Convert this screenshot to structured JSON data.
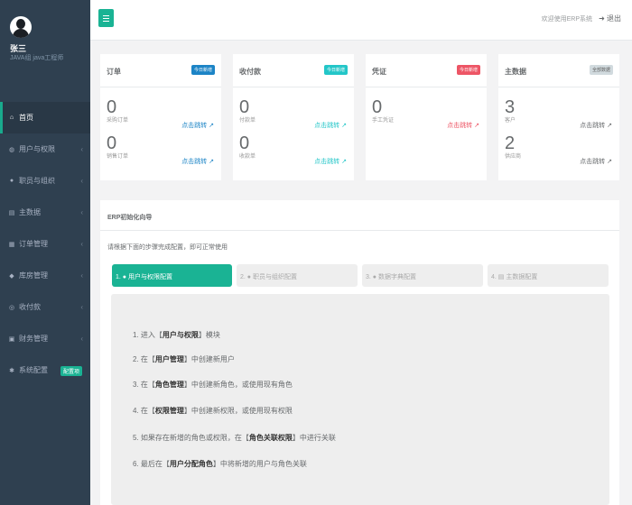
{
  "user": {
    "name": "张三",
    "role": "JAVA组 java工程师"
  },
  "nav": {
    "items": [
      {
        "label": "首页",
        "icon": "home-icon",
        "glyph": "⌂",
        "active": true
      },
      {
        "label": "用户与权限",
        "icon": "user-icon",
        "glyph": "◍",
        "arrow": "‹"
      },
      {
        "label": "职员与组织",
        "icon": "staff-icon",
        "glyph": "●",
        "arrow": "‹"
      },
      {
        "label": "主数据",
        "icon": "data-icon",
        "glyph": "▤",
        "arrow": "‹"
      },
      {
        "label": "订单管理",
        "icon": "order-icon",
        "glyph": "▦",
        "arrow": "‹"
      },
      {
        "label": "库房管理",
        "icon": "warehouse-icon",
        "glyph": "◆",
        "arrow": "‹"
      },
      {
        "label": "收付款",
        "icon": "payment-icon",
        "glyph": "◎",
        "arrow": "‹"
      },
      {
        "label": "财务管理",
        "icon": "finance-icon",
        "glyph": "▣",
        "arrow": "‹"
      },
      {
        "label": "系统配置",
        "icon": "settings-icon",
        "glyph": "✱",
        "badge": "配置项"
      }
    ]
  },
  "topbar": {
    "welcome": "欢迎使用ERP系统",
    "logout": "退出",
    "logout_icon": "➜"
  },
  "cards": {
    "orders": {
      "title": "订单",
      "label": "今日新增",
      "stats": [
        {
          "value": "0",
          "sub": "采购订单",
          "link": "点击跳转 ↗"
        },
        {
          "value": "0",
          "sub": "销售订单",
          "link": "点击跳转 ↗"
        }
      ]
    },
    "payments": {
      "title": "收付款",
      "label": "今日新增",
      "stats": [
        {
          "value": "0",
          "sub": "付款单",
          "link": "点击跳转 ↗"
        },
        {
          "value": "0",
          "sub": "收款单",
          "link": "点击跳转 ↗"
        }
      ]
    },
    "vouchers": {
      "title": "凭证",
      "label": "今日新增",
      "stats": [
        {
          "value": "0",
          "sub": "手工凭证",
          "link": "点击跳转 ↗"
        }
      ]
    },
    "master": {
      "title": "主数据",
      "label": "全部数据",
      "stats": [
        {
          "value": "3",
          "sub": "客户",
          "link": "点击跳转 ↗"
        },
        {
          "value": "2",
          "sub": "供应商",
          "link": "点击跳转 ↗"
        }
      ]
    }
  },
  "wizard": {
    "title": "ERP初始化向导",
    "tip": "请根据下面的步骤完成配置，即可正常使用",
    "steps": [
      {
        "label": "1. ● 用户与权限配置"
      },
      {
        "label": "2. ● 职员与组织配置"
      },
      {
        "label": "3. ● 数据字典配置"
      },
      {
        "label": "4. ▤ 主数据配置"
      }
    ],
    "lines": [
      {
        "pre": "1. 进入【",
        "bold": "用户与权限",
        "post": "】模块"
      },
      {
        "pre": "2. 在【",
        "bold": "用户管理",
        "post": "】中创建新用户"
      },
      {
        "pre": "3. 在【",
        "bold": "角色管理",
        "post": "】中创建新角色，或使用现有角色"
      },
      {
        "pre": "4. 在【",
        "bold": "权限管理",
        "post": "】中创建新权限，或使用现有权限"
      },
      {
        "pre": "5. 如果存在新增的角色或权限，在【",
        "bold": "角色关联权限",
        "post": "】中进行关联"
      },
      {
        "pre": "6. 最后在【",
        "bold": "用户分配角色",
        "post": "】中将新增的用户与角色关联"
      }
    ]
  }
}
